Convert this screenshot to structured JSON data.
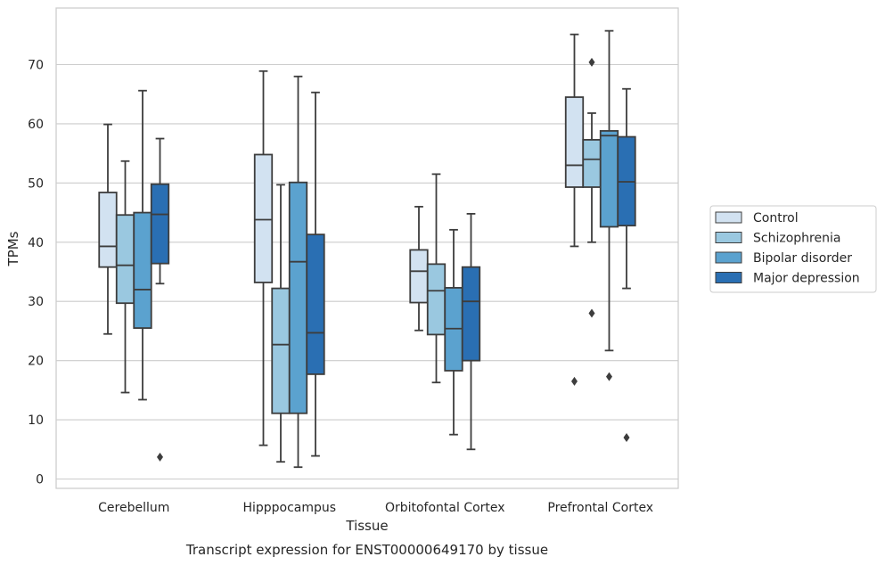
{
  "caption": "Transcript expression for ENST00000649170 by tissue",
  "chart_data": {
    "type": "box",
    "xlabel": "Tissue",
    "ylabel": "TPMs",
    "ylim": [
      -1.5,
      79
    ],
    "yticks": [
      0,
      10,
      20,
      30,
      40,
      50,
      60,
      70
    ],
    "grid": "horizontal",
    "legend_position": "right",
    "categories": [
      "Cerebellum",
      "Hipppocampus",
      "Orbitofontal Cortex",
      "Prefrontal Cortex"
    ],
    "series": [
      {
        "name": "Control",
        "color": "#d2e2f1",
        "boxes": [
          {
            "whislo": 24.5,
            "q1": 35.8,
            "med": 39.3,
            "q3": 48.4,
            "whishi": 59.9,
            "fliers": []
          },
          {
            "whislo": 5.7,
            "q1": 33.2,
            "med": 43.8,
            "q3": 54.8,
            "whishi": 68.9,
            "fliers": []
          },
          {
            "whislo": 25.1,
            "q1": 29.8,
            "med": 35.1,
            "q3": 38.7,
            "whishi": 46.0,
            "fliers": []
          },
          {
            "whislo": 39.3,
            "q1": 49.3,
            "med": 53.0,
            "q3": 64.5,
            "whishi": 75.1,
            "fliers": [
              16.5
            ]
          }
        ]
      },
      {
        "name": "Schizophrenia",
        "color": "#9ac8e0",
        "boxes": [
          {
            "whislo": 14.6,
            "q1": 29.7,
            "med": 36.1,
            "q3": 44.6,
            "whishi": 53.7,
            "fliers": []
          },
          {
            "whislo": 2.9,
            "q1": 11.1,
            "med": 22.7,
            "q3": 32.2,
            "whishi": 49.7,
            "fliers": []
          },
          {
            "whislo": 16.3,
            "q1": 24.4,
            "med": 31.8,
            "q3": 36.3,
            "whishi": 51.5,
            "fliers": []
          },
          {
            "whislo": 40.0,
            "q1": 49.3,
            "med": 54.0,
            "q3": 57.3,
            "whishi": 61.8,
            "fliers": [
              70.4,
              28.0
            ]
          }
        ]
      },
      {
        "name": "Bipolar disorder",
        "color": "#5ba2cf",
        "boxes": [
          {
            "whislo": 13.4,
            "q1": 25.5,
            "med": 32.0,
            "q3": 45.0,
            "whishi": 65.6,
            "fliers": []
          },
          {
            "whislo": 2.0,
            "q1": 11.1,
            "med": 36.7,
            "q3": 50.1,
            "whishi": 68.0,
            "fliers": []
          },
          {
            "whislo": 7.5,
            "q1": 18.3,
            "med": 25.4,
            "q3": 32.3,
            "whishi": 42.1,
            "fliers": []
          },
          {
            "whislo": 21.7,
            "q1": 42.6,
            "med": 58.0,
            "q3": 58.8,
            "whishi": 75.7,
            "fliers": [
              17.3
            ]
          }
        ]
      },
      {
        "name": "Major depression",
        "color": "#2a6fb3",
        "boxes": [
          {
            "whislo": 33.0,
            "q1": 36.4,
            "med": 44.7,
            "q3": 49.8,
            "whishi": 57.5,
            "fliers": [
              3.7
            ]
          },
          {
            "whislo": 3.9,
            "q1": 17.7,
            "med": 24.7,
            "q3": 41.3,
            "whishi": 65.3,
            "fliers": []
          },
          {
            "whislo": 5.0,
            "q1": 20.0,
            "med": 30.0,
            "q3": 35.8,
            "whishi": 44.8,
            "fliers": []
          },
          {
            "whislo": 32.2,
            "q1": 42.8,
            "med": 50.2,
            "q3": 57.8,
            "whishi": 65.9,
            "fliers": [
              7.0
            ]
          }
        ]
      }
    ]
  }
}
